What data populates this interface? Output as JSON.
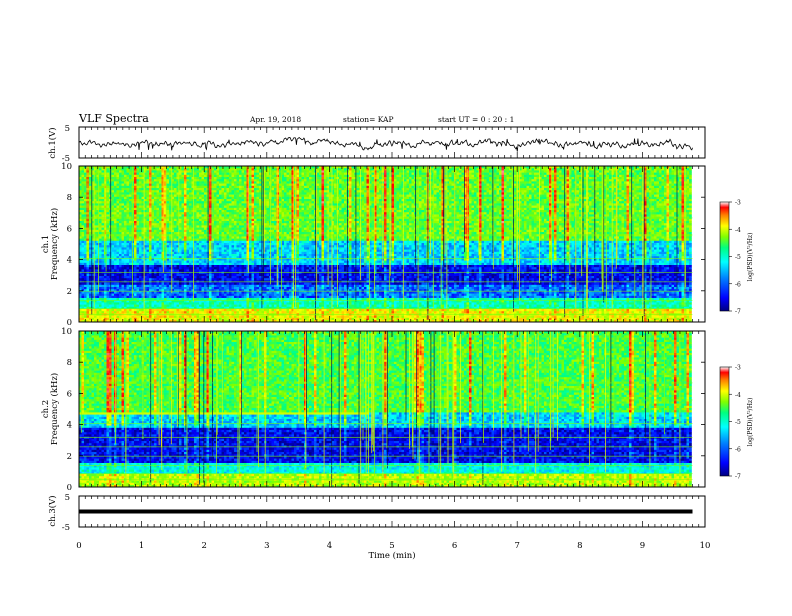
{
  "header": {
    "title": "VLF Spectra",
    "date": "Apr. 19, 2018",
    "station": "station= KAP",
    "start": "start  UT =   0 : 20 : 1"
  },
  "chart_data": [
    {
      "type": "line",
      "panel": "ch1-waveform",
      "ylabel": "ch.1(V)",
      "ylim": [
        -5,
        5
      ],
      "yticks": [
        "5",
        "-5"
      ],
      "x_unit": "min",
      "xlim": [
        0,
        10
      ],
      "data_extent_min": 9.8,
      "description_values": {
        "mean": 0,
        "approx_range": [
          -2,
          1
        ]
      }
    },
    {
      "type": "heatmap",
      "panel": "ch1-spectrogram",
      "ylabel_line1": "ch.1",
      "ylabel_line2": "Frequency (kHz)",
      "ylim": [
        0,
        10
      ],
      "yticks": [
        "0",
        "2",
        "4",
        "6",
        "8",
        "10"
      ],
      "xlim": [
        0,
        10
      ],
      "colorbar": {
        "label": "log(PSD)(V²/Hz)",
        "range": [
          -7,
          -3
        ],
        "ticks": [
          "-3",
          "-4",
          "-5",
          "-6",
          "-7"
        ]
      },
      "band_levels_log_psd": [
        {
          "f_kHz": [
            0,
            0.8
          ],
          "level": -4.4
        },
        {
          "f_kHz": [
            0.8,
            1.6
          ],
          "level": -5.4
        },
        {
          "f_kHz": [
            1.6,
            2.4
          ],
          "level": -6.2
        },
        {
          "f_kHz": [
            2.4,
            3.6
          ],
          "level": -6.6
        },
        {
          "f_kHz": [
            3.6,
            5.2
          ],
          "level": -5.8
        },
        {
          "f_kHz": [
            5.2,
            10
          ],
          "level": -4.9
        }
      ]
    },
    {
      "type": "heatmap",
      "panel": "ch2-spectrogram",
      "ylabel_line1": "ch.2",
      "ylabel_line2": "Frequency (kHz)",
      "ylim": [
        0,
        10
      ],
      "yticks": [
        "0",
        "2",
        "4",
        "6",
        "8",
        "10"
      ],
      "xlim": [
        0,
        10
      ],
      "colorbar": {
        "label": "log(PSD)(V²/Hz)",
        "range": [
          -7,
          -3
        ],
        "ticks": [
          "-3",
          "-4",
          "-5",
          "-6",
          "-7"
        ]
      },
      "band_levels_log_psd": [
        {
          "f_kHz": [
            0,
            0.8
          ],
          "level": -4.6
        },
        {
          "f_kHz": [
            0.8,
            1.6
          ],
          "level": -5.6
        },
        {
          "f_kHz": [
            1.6,
            3.8
          ],
          "level": -6.6
        },
        {
          "f_kHz": [
            3.8,
            4.8
          ],
          "level": -5.8
        },
        {
          "f_kHz": [
            4.8,
            10
          ],
          "level": -5.0
        }
      ],
      "feature": {
        "f_kHz": 4.7,
        "t_end_min": 4.6,
        "level": -4.5
      }
    },
    {
      "type": "line",
      "panel": "ch3-waveform",
      "ylabel": "ch.3(V)",
      "ylim": [
        -5,
        5
      ],
      "yticks": [
        "5",
        "-5"
      ],
      "xlabel": "Time  (min)",
      "xlim": [
        0,
        10
      ],
      "xticks": [
        "0",
        "1",
        "2",
        "3",
        "4",
        "5",
        "6",
        "7",
        "8",
        "9",
        "10"
      ],
      "constant_value": 0
    }
  ],
  "colors": {
    "frame": "#000000",
    "waveform": "#000000",
    "colormap": [
      "#000080",
      "#0000ff",
      "#0080ff",
      "#00ffff",
      "#00ff80",
      "#80ff00",
      "#ffff00",
      "#ff8000",
      "#ff0000",
      "#ffffff"
    ]
  }
}
